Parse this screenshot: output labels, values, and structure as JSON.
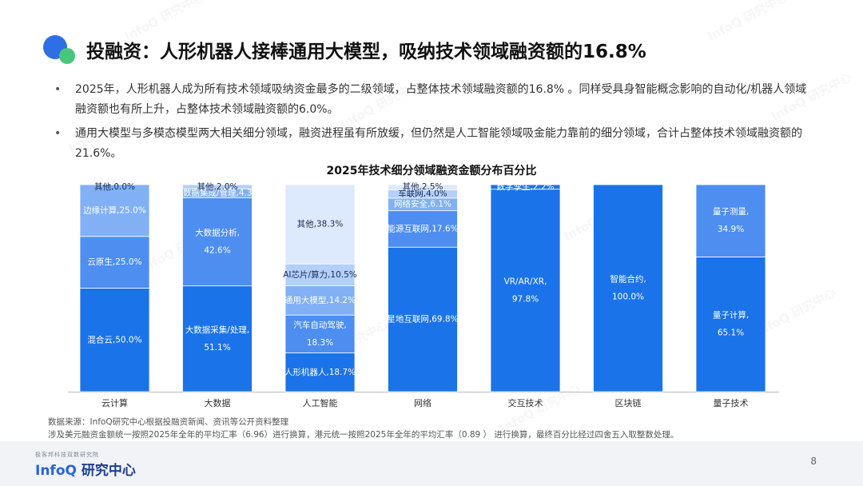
{
  "header": {
    "title": "投融资：人形机器人接棒通用大模型，吸纳技术领域融资额的16.8%"
  },
  "bullets": [
    "2025年，人形机器人成为所有技术领域吸纳资金最多的二级领域，占整体技术领域融资额的16.8% 。同样受具身智能概念影响的自动化/机器人领域融资额也有所上升，占整体技术领域融资额的6.0%。",
    "通用大模型与多模态模型两大相关细分领域，融资进程虽有所放缓，但仍然是人工智能领域吸金能力靠前的细分领域，合计占整体技术领域融资额的21.6%。"
  ],
  "chart_data": {
    "type": "bar",
    "stacked": true,
    "normalized": true,
    "title": "2025年技术细分领域融资金额分布百分比",
    "ylim": [
      0,
      100
    ],
    "colors": [
      "#1a73e8",
      "#4d8ef0",
      "#81b0f5",
      "#b3cffa",
      "#dde9fd"
    ],
    "categories": [
      {
        "name": "云计算",
        "segments": [
          {
            "label": "混合云,50.0%",
            "value": 50.0
          },
          {
            "label": "云原生,25.0%",
            "value": 25.0
          },
          {
            "label": "边缘计算,25.0%",
            "value": 25.0
          },
          {
            "label": "其他,0.0%",
            "value": 0.0
          }
        ]
      },
      {
        "name": "大数据",
        "segments": [
          {
            "label": "大数据采集/处理,\n51.1%",
            "value": 51.1
          },
          {
            "label": "大数据分析,\n42.6%",
            "value": 42.6
          },
          {
            "label": "大数据集成/管理,4.3%",
            "value": 4.3
          },
          {
            "label": "其他,2.0%",
            "value": 2.0
          }
        ]
      },
      {
        "name": "人工智能",
        "segments": [
          {
            "label": "人形机器人,18.7%",
            "value": 18.7
          },
          {
            "label": "汽车自动驾驶,\n18.3%",
            "value": 18.3
          },
          {
            "label": "通用大模型,14.2%",
            "value": 14.2
          },
          {
            "label": "AI芯片/算力,10.5%",
            "value": 10.5
          },
          {
            "label": "其他,38.3%",
            "value": 38.3
          }
        ]
      },
      {
        "name": "网络",
        "segments": [
          {
            "label": "星地互联网,69.8%",
            "value": 69.8
          },
          {
            "label": "能源互联网,17.6%",
            "value": 17.6
          },
          {
            "label": "网络安全,6.1%",
            "value": 6.1
          },
          {
            "label": "车联网,4.0%",
            "value": 4.0
          },
          {
            "label": "其他,2.5%",
            "value": 2.5
          }
        ]
      },
      {
        "name": "交互技术",
        "segments": [
          {
            "label": "VR/AR/XR,\n97.8%",
            "value": 97.8
          },
          {
            "label": "数字孪生,2.2%",
            "value": 2.2
          }
        ]
      },
      {
        "name": "区块链",
        "segments": [
          {
            "label": "智能合约,\n100.0%",
            "value": 100.0
          }
        ]
      },
      {
        "name": "量子技术",
        "segments": [
          {
            "label": "量子计算,\n65.1%",
            "value": 65.1
          },
          {
            "label": "量子测量,\n34.9%",
            "value": 34.9
          }
        ]
      }
    ]
  },
  "source": {
    "line1": "数据来源：InfoQ研究中心根据投融资新闻、资讯等公开资料整理",
    "line2": "涉及美元融资金额统一按照2025年全年的平均汇率（6.96）进行换算，港元统一按照2025年全年的平均汇率（0.89 ） 进行换算，最终百分比经过四舍五入取整数处理。"
  },
  "footer": {
    "brand_small": "极客邦科技双数研究院",
    "brand_infoq": "InfoQ",
    "brand_cn": " 研究中心",
    "page": "8",
    "watermark": "InfoQ 研究中心"
  }
}
